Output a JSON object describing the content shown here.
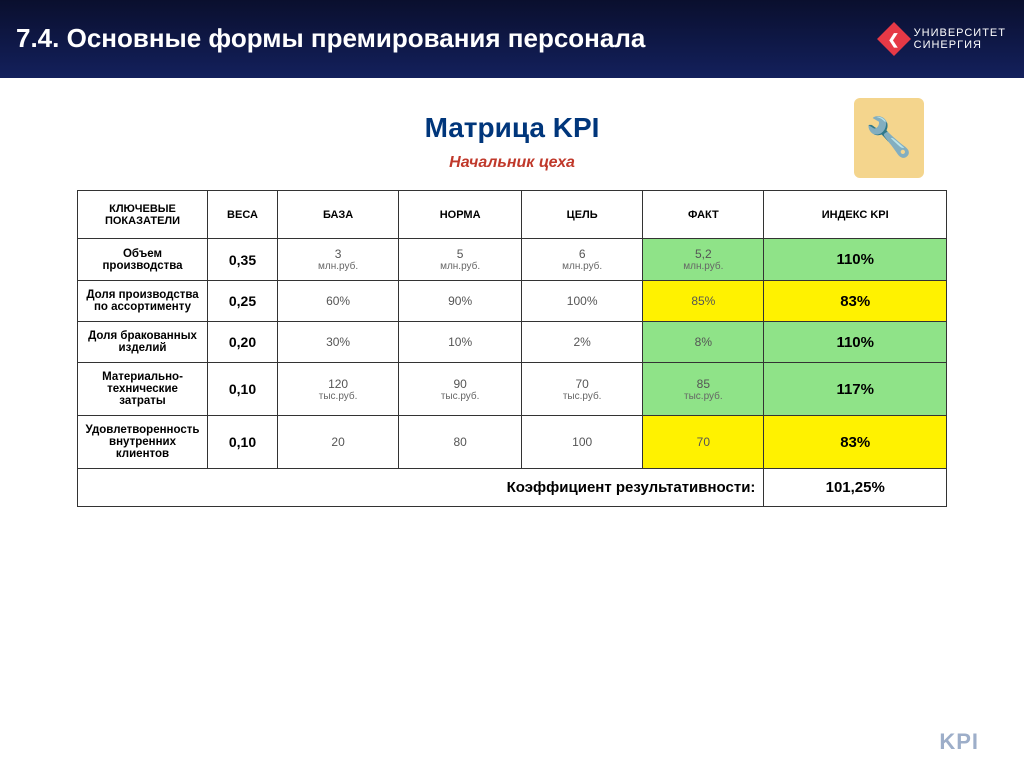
{
  "header": {
    "title": "7.4. Основные формы премирования персонала",
    "logo_top": "УНИВЕРСИТЕТ",
    "logo_bottom": "СИНЕРГИЯ"
  },
  "main": {
    "title": "Матрица KPI",
    "subtitle": "Начальник цеха",
    "clipart_emoji": "🔧",
    "columns": [
      "КЛЮЧЕВЫЕ ПОКАЗАТЕЛИ",
      "ВЕСА",
      "БАЗА",
      "НОРМА",
      "ЦЕЛЬ",
      "ФАКТ",
      "ИНДЕКС KPI"
    ],
    "rows": [
      {
        "indicator": "Объем производства",
        "weight": "0,35",
        "base_v": "3",
        "base_u": "млн.руб.",
        "norm_v": "5",
        "norm_u": "млн.руб.",
        "goal_v": "6",
        "goal_u": "млн.руб.",
        "fact_v": "5,2",
        "fact_u": "млн.руб.",
        "fact_cls": "fact-green",
        "idx": "110%",
        "idx_cls": "idx-green"
      },
      {
        "indicator": "Доля производства по ассортименту",
        "weight": "0,25",
        "base_v": "60%",
        "base_u": "",
        "norm_v": "90%",
        "norm_u": "",
        "goal_v": "100%",
        "goal_u": "",
        "fact_v": "85%",
        "fact_u": "",
        "fact_cls": "fact-yellow",
        "idx": "83%",
        "idx_cls": "idx-yellow"
      },
      {
        "indicator": "Доля бракованных изделий",
        "weight": "0,20",
        "base_v": "30%",
        "base_u": "",
        "norm_v": "10%",
        "norm_u": "",
        "goal_v": "2%",
        "goal_u": "",
        "fact_v": "8%",
        "fact_u": "",
        "fact_cls": "fact-green",
        "idx": "110%",
        "idx_cls": "idx-green"
      },
      {
        "indicator": "Материально-технические затраты",
        "weight": "0,10",
        "base_v": "120",
        "base_u": "тыс.руб.",
        "norm_v": "90",
        "norm_u": "тыс.руб.",
        "goal_v": "70",
        "goal_u": "тыс.руб.",
        "fact_v": "85",
        "fact_u": "тыс.руб.",
        "fact_cls": "fact-green",
        "idx": "117%",
        "idx_cls": "idx-green"
      },
      {
        "indicator": "Удовлетворенность внутренних клиентов",
        "weight": "0,10",
        "base_v": "20",
        "base_u": "",
        "norm_v": "80",
        "norm_u": "",
        "goal_v": "100",
        "goal_u": "",
        "fact_v": "70",
        "fact_u": "",
        "fact_cls": "fact-yellow",
        "idx": "83%",
        "idx_cls": "idx-yellow"
      }
    ],
    "footer_label": "Коэффициент результативности:",
    "footer_value": "101,25%",
    "watermark": "KPI"
  },
  "style": {
    "header_bg_top": "#0a0f2e",
    "header_bg_bottom": "#13205c",
    "title_color": "#00367b",
    "subtitle_color": "#c0392b",
    "green": "#8fe388",
    "yellow": "#fff200",
    "border": "#333333",
    "watermark": "#9daec9"
  }
}
